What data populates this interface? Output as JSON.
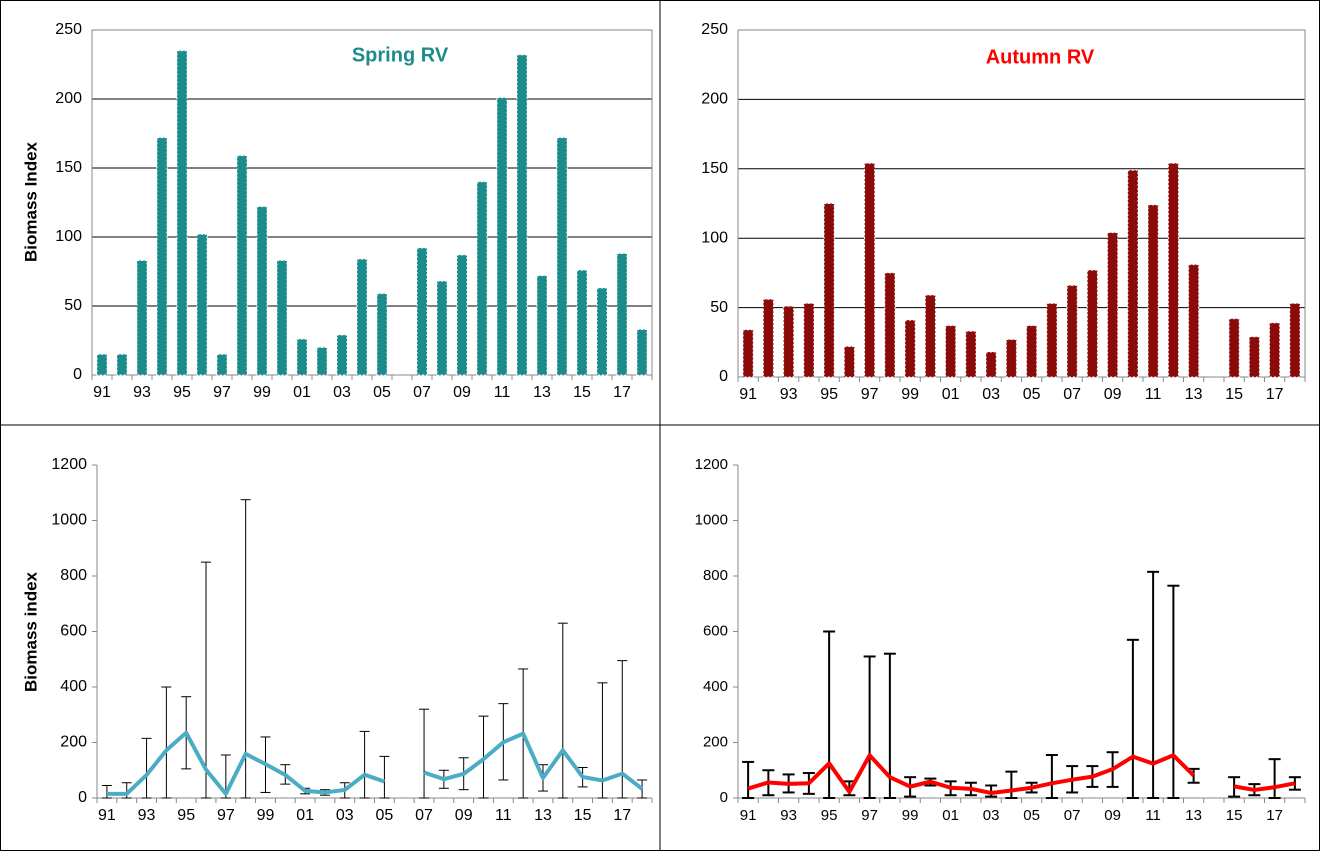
{
  "chart_data": [
    {
      "type": "bar",
      "title": "Spring RV",
      "ylabel": "Biomass Index",
      "categories": [
        "91",
        null,
        "93",
        null,
        "95",
        null,
        "97",
        null,
        "99",
        null,
        "01",
        null,
        "03",
        null,
        "05",
        null,
        "07",
        null,
        "09",
        null,
        "11",
        null,
        "13",
        null,
        "15",
        null,
        "17",
        null
      ],
      "values": [
        15,
        15,
        83,
        172,
        235,
        102,
        15,
        159,
        122,
        83,
        26,
        20,
        29,
        84,
        59,
        null,
        92,
        68,
        87,
        140,
        201,
        232,
        72,
        172,
        76,
        63,
        88,
        33
      ],
      "color": "#1a8c8c",
      "title_color": "#1a8c8c",
      "ylim": [
        0,
        250
      ],
      "yticks": [
        0,
        50,
        100,
        150,
        200,
        250
      ],
      "grid": true
    },
    {
      "type": "bar",
      "title": "Autumn RV",
      "categories": [
        "91",
        null,
        "93",
        null,
        "95",
        null,
        "97",
        null,
        "99",
        null,
        "01",
        null,
        "03",
        null,
        "05",
        null,
        "07",
        null,
        "09",
        null,
        "11",
        null,
        "13",
        null,
        "15",
        null,
        "17",
        null
      ],
      "values": [
        34,
        56,
        51,
        53,
        125,
        22,
        154,
        75,
        41,
        59,
        37,
        33,
        18,
        27,
        37,
        53,
        66,
        77,
        104,
        149,
        124,
        154,
        81,
        null,
        42,
        29,
        39,
        53
      ],
      "color": "#8b0a0a",
      "title_color": "#ff0000",
      "ylim": [
        0,
        250
      ],
      "yticks": [
        0,
        50,
        100,
        150,
        200,
        250
      ],
      "grid": true
    },
    {
      "type": "line",
      "ylabel": "Biomass index",
      "categories": [
        "91",
        null,
        "93",
        null,
        "95",
        null,
        "97",
        null,
        "99",
        null,
        "01",
        null,
        "03",
        null,
        "05",
        null,
        "07",
        null,
        "09",
        null,
        "11",
        null,
        "13",
        null,
        "15",
        null,
        "17",
        null
      ],
      "values": [
        15,
        15,
        83,
        172,
        235,
        102,
        15,
        159,
        122,
        83,
        26,
        20,
        29,
        84,
        59,
        null,
        92,
        68,
        87,
        140,
        201,
        232,
        72,
        172,
        76,
        63,
        88,
        33
      ],
      "lower": [
        0,
        0,
        0,
        0,
        105,
        0,
        0,
        0,
        20,
        50,
        15,
        10,
        0,
        0,
        0,
        null,
        0,
        35,
        30,
        0,
        65,
        0,
        25,
        0,
        40,
        0,
        0,
        0
      ],
      "upper": [
        45,
        55,
        215,
        400,
        365,
        850,
        155,
        1075,
        220,
        120,
        35,
        30,
        55,
        240,
        150,
        null,
        320,
        100,
        145,
        295,
        340,
        465,
        120,
        630,
        110,
        415,
        495,
        65
      ],
      "color": "#4bacc6",
      "ylim": [
        0,
        1200
      ],
      "yticks": [
        0,
        200,
        400,
        600,
        800,
        1000,
        1200
      ],
      "grid": false
    },
    {
      "type": "line",
      "categories": [
        "91",
        null,
        "93",
        null,
        "95",
        null,
        "97",
        null,
        "99",
        null,
        "01",
        null,
        "03",
        null,
        "05",
        null,
        "07",
        null,
        "09",
        null,
        "11",
        null,
        "13",
        null,
        "15",
        null,
        "17",
        null
      ],
      "values": [
        34,
        56,
        51,
        53,
        125,
        22,
        154,
        75,
        41,
        59,
        37,
        33,
        18,
        27,
        37,
        53,
        66,
        77,
        104,
        149,
        124,
        154,
        81,
        null,
        42,
        29,
        39,
        53
      ],
      "lower": [
        0,
        10,
        20,
        15,
        0,
        10,
        0,
        0,
        5,
        45,
        10,
        10,
        5,
        0,
        20,
        0,
        20,
        40,
        40,
        0,
        0,
        0,
        55,
        null,
        5,
        10,
        0,
        30
      ],
      "upper": [
        130,
        100,
        85,
        90,
        600,
        60,
        510,
        520,
        75,
        70,
        60,
        55,
        45,
        95,
        55,
        155,
        115,
        115,
        165,
        570,
        815,
        765,
        105,
        null,
        75,
        50,
        140,
        75
      ],
      "color": "#ff0000",
      "ylim": [
        0,
        1200
      ],
      "yticks": [
        0,
        200,
        400,
        600,
        800,
        1000,
        1200
      ],
      "grid": false
    }
  ]
}
